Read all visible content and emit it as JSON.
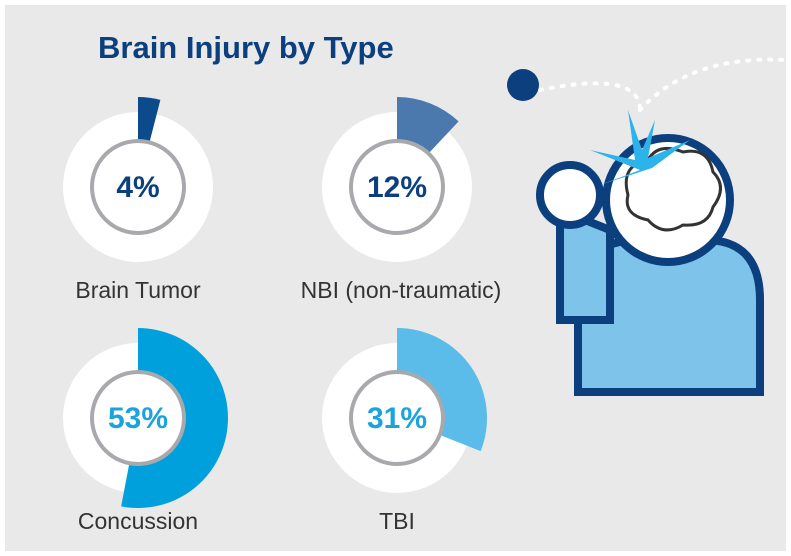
{
  "chart_data": {
    "type": "donut",
    "title": "Brain Injury by Type",
    "categories": [
      "Brain Tumor",
      "NBI (non-traumatic)",
      "Concussion",
      "TBI"
    ],
    "values": [
      4,
      12,
      53,
      31
    ],
    "value_labels": [
      "4%",
      "12%",
      "53%",
      "31%"
    ],
    "colors": [
      "#0b4a8b",
      "#4b79ad",
      "#00a0dc",
      "#5bbbe9"
    ],
    "label_colors": [
      "#0b3f7d",
      "#0b3f7d",
      "#1aa3dd",
      "#1aa3dd"
    ],
    "total": 100
  }
}
